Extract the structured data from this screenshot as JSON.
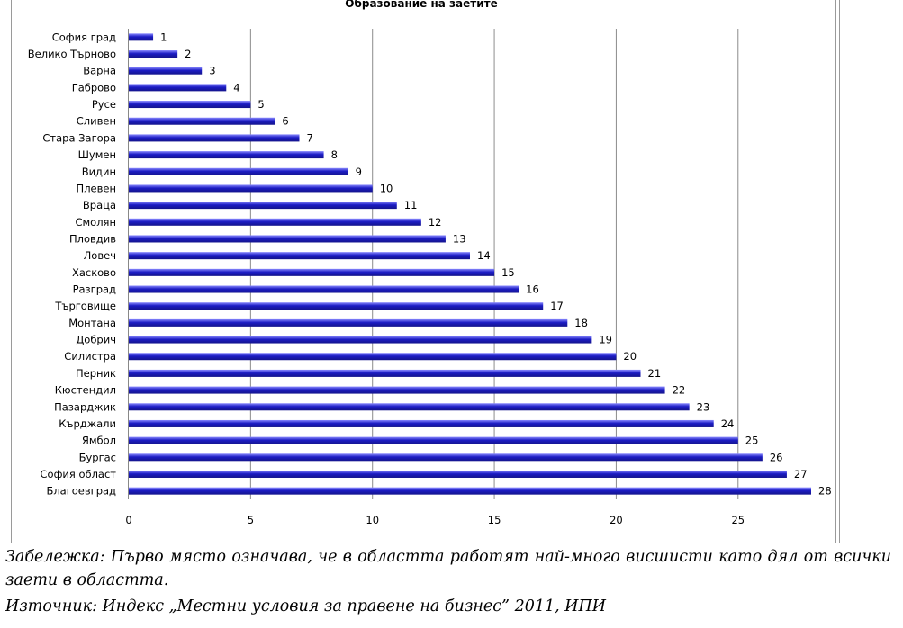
{
  "chart_data": {
    "type": "bar",
    "orientation": "horizontal",
    "title": "Образование на заетите",
    "xlabel": "",
    "ylabel": "",
    "categories": [
      "София град",
      "Велико Търново",
      "Варна",
      "Габрово",
      "Русе",
      "Сливен",
      "Стара Загора",
      "Шумен",
      "Видин",
      "Плевен",
      "Враца",
      "Смолян",
      "Пловдив",
      "Ловеч",
      "Хасково",
      "Разград",
      "Търговище",
      "Монтана",
      "Добрич",
      "Силистра",
      "Перник",
      "Кюстендил",
      "Пазарджик",
      "Кърджали",
      "Ямбол",
      "Бургас",
      "София област",
      "Благоевград"
    ],
    "values": [
      1,
      2,
      3,
      4,
      5,
      6,
      7,
      8,
      9,
      10,
      11,
      12,
      13,
      14,
      15,
      16,
      17,
      18,
      19,
      20,
      21,
      22,
      23,
      24,
      25,
      26,
      27,
      28
    ],
    "x_ticks": [
      "0",
      "5",
      "10",
      "15",
      "20",
      "25"
    ],
    "xlim": [
      0,
      28
    ],
    "grid": true,
    "legend": "none",
    "bar_color": "#1c1cc4",
    "bar_highlight_color": "#8a8aff"
  },
  "note": "Забележка: Първо място означава, че в областта работят най-много висшисти като дял от всички заети в областта.",
  "source": "Източник: Индекс „Местни условия за правене на бизнес” 2011, ИПИ"
}
